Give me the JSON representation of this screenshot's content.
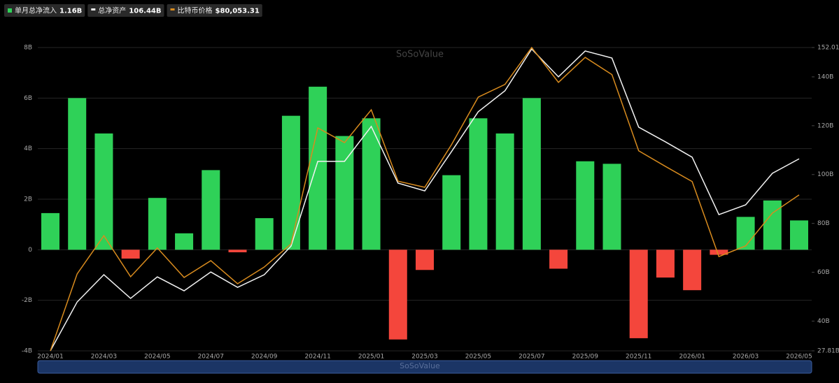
{
  "chart_data": {
    "type": "bar-line",
    "watermark": "SoSoValue",
    "categories": [
      "2024/01",
      null,
      "2024/03",
      null,
      "2024/05",
      null,
      "2024/07",
      null,
      "2024/09",
      null,
      "2024/11",
      null,
      "2025/01",
      null,
      "2025/03",
      null,
      "2025/05",
      null,
      "2025/07",
      null,
      "2025/09",
      null,
      "2025/11",
      null,
      "2026/01",
      null,
      "2026/03",
      null,
      "2026/05"
    ],
    "series": [
      {
        "name": "单月总净流入",
        "legend_value": "1.16B",
        "type": "bar",
        "axis": "y",
        "color": "#2fd158",
        "negative_color": "#f4463c",
        "values": [
          1.45,
          6.0,
          4.6,
          -0.35,
          2.05,
          0.65,
          3.15,
          -0.1,
          1.25,
          5.3,
          6.45,
          4.5,
          5.2,
          -3.55,
          -0.8,
          2.95,
          5.2,
          4.6,
          6.0,
          -0.75,
          3.5,
          3.4,
          -3.5,
          -1.1,
          -1.6,
          -0.2,
          1.3,
          1.95,
          1.16
        ]
      },
      {
        "name": "总净资产",
        "legend_value": "106.44B",
        "type": "line",
        "axis": "y2",
        "color": "#f2f2f2",
        "values": [
          27.81,
          47.8,
          59.0,
          49.3,
          58.1,
          52.4,
          60.1,
          53.8,
          59.0,
          70.7,
          105.4,
          105.4,
          119.7,
          96.5,
          93.3,
          109.4,
          125.7,
          134.3,
          151.4,
          140.0,
          150.6,
          147.7,
          119.4,
          113.4,
          107.1,
          83.6,
          87.6,
          100.5,
          106.44
        ]
      },
      {
        "name": "比特币价格",
        "legend_value": "$80,053.31",
        "type": "line",
        "axis": "y3",
        "color": "#d88b1e",
        "values": [
          42000,
          60760,
          70100,
          60080,
          67100,
          59900,
          64000,
          58370,
          62460,
          68100,
          96400,
          92800,
          100800,
          83400,
          81900,
          92300,
          103900,
          107000,
          116000,
          107500,
          113600,
          109400,
          90800,
          87000,
          83300,
          65000,
          67600,
          75600,
          80053.31
        ]
      }
    ],
    "ylim": [
      -4,
      8
    ],
    "yticks": [
      {
        "value": -4,
        "label": "-4B"
      },
      {
        "value": -2,
        "label": "-2B"
      },
      0,
      {
        "value": 2,
        "label": "2B"
      },
      {
        "value": 4,
        "label": "4B"
      },
      {
        "value": 6,
        "label": "6B"
      },
      {
        "value": 8,
        "label": "8B"
      }
    ],
    "y2lim": [
      27.81,
      152.01
    ],
    "y2ticks": [
      {
        "value": 27.81,
        "label": "27.81B"
      },
      {
        "value": 40,
        "label": "40B"
      },
      {
        "value": 60,
        "label": "60B"
      },
      {
        "value": 80,
        "label": "80B"
      },
      {
        "value": 100,
        "label": "100B"
      },
      {
        "value": 120,
        "label": "120B"
      },
      {
        "value": 140,
        "label": "140B"
      },
      {
        "value": 152.01,
        "label": "152.01B"
      }
    ],
    "y3lim": [
      42000,
      116000
    ],
    "grid": true
  }
}
